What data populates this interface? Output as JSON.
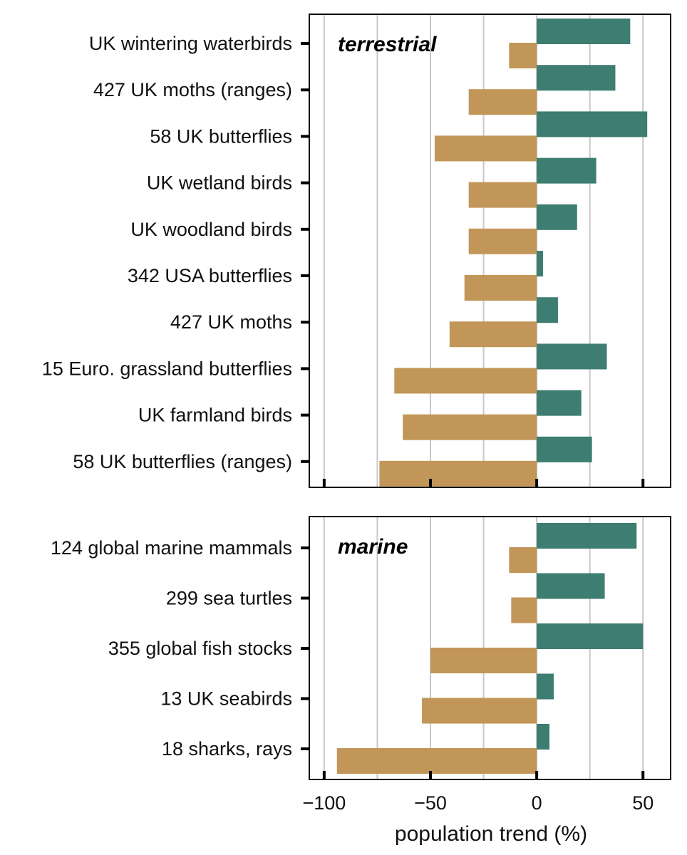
{
  "chart_data": {
    "type": "bar",
    "orientation": "horizontal",
    "xlabel": "population trend (%)",
    "xlim": [
      -107,
      63
    ],
    "xticks": [
      -100,
      -50,
      0,
      50
    ],
    "xtick_labels": [
      "−100",
      "−50",
      "0",
      "50"
    ],
    "gridlines": [
      -100,
      -75,
      -50,
      -25,
      0,
      25,
      50
    ],
    "colors": {
      "decline": "#c19658",
      "increase": "#3d7d72"
    },
    "series": [
      {
        "name": "decline",
        "color": "#c19658"
      },
      {
        "name": "increase",
        "color": "#3d7d72"
      }
    ],
    "panels": [
      {
        "label": "terrestrial",
        "categories": [
          "UK wintering waterbirds",
          "427 UK moths (ranges)",
          "58 UK butterflies",
          "UK wetland birds",
          "UK woodland birds",
          "342 USA butterflies",
          "427 UK moths",
          "15 Euro. grassland butterflies",
          "UK farmland birds",
          "58 UK butterflies (ranges)"
        ],
        "decline": [
          -13,
          -32,
          -48,
          -32,
          -32,
          -34,
          -41,
          -67,
          -63,
          -74
        ],
        "increase": [
          44,
          37,
          52,
          28,
          19,
          3,
          10,
          33,
          21,
          26
        ]
      },
      {
        "label": "marine",
        "categories": [
          "124 global marine mammals",
          "299 sea turtles",
          "355 global fish stocks",
          "13 UK seabirds",
          "18 sharks, rays"
        ],
        "decline": [
          -13,
          -12,
          -50,
          -54,
          -94
        ],
        "increase": [
          47,
          32,
          50,
          8,
          6
        ]
      }
    ]
  }
}
